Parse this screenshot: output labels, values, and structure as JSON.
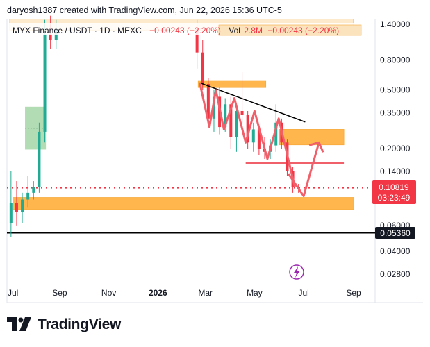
{
  "header": {
    "attribution": "daryosh1387 created with TradingView.com, Jun 22, 2026 15:36 UTC-5"
  },
  "legend": {
    "symbol": "MYX Finance / USDT · 1D · MEXC",
    "change": "−0.00243 (−2.20%)",
    "vol_label": "Vol",
    "vol_value": "2.8M",
    "vol_change": "−0.00243 (−2.20%)"
  },
  "colors": {
    "up": "#22ab94",
    "down": "#f23645",
    "zone": "#ffb74d",
    "zone_border": "#f7a93a",
    "drawing": "#f0606a",
    "demand": "#a5d6a7",
    "price_badge": "#f23645",
    "support_badge": "#131722"
  },
  "chart_data": {
    "type": "candlestick",
    "symbol": "MYX Finance / USDT",
    "interval": "1D",
    "exchange": "MEXC",
    "y_scale": "log",
    "y_ticks": [
      1.4,
      0.8,
      0.5,
      0.35,
      0.2,
      0.14,
      0.06,
      0.04,
      0.028
    ],
    "y_tick_labels": [
      "1.40000",
      "0.80000",
      "0.50000",
      "0.35000",
      "0.20000",
      "0.14000",
      "0.06000",
      "0.04000",
      "0.02800"
    ],
    "x_ticks": [
      "2025-07-01",
      "2025-09-01",
      "2025-11-01",
      "2026-01-01",
      "2026-03-01",
      "2026-05-01",
      "2026-07-01",
      "2026-09-01"
    ],
    "x_tick_labels": [
      "Jul",
      "Sep",
      "Nov",
      "2026",
      "Mar",
      "May",
      "Jul",
      "Sep"
    ],
    "last_price": 0.10819,
    "last_price_label": "0.10819",
    "countdown": "03:23:49",
    "support_price": 0.0536,
    "support_label": "0.05360",
    "series": [
      {
        "name": "MYX Finance / USDT",
        "ohlc_weekly": [
          {
            "t": "2025-06-30",
            "o": 0.062,
            "h": 0.14,
            "l": 0.05,
            "c": 0.085
          },
          {
            "t": "2025-07-07",
            "o": 0.085,
            "h": 0.12,
            "l": 0.06,
            "c": 0.074
          },
          {
            "t": "2025-07-14",
            "o": 0.074,
            "h": 0.1,
            "l": 0.062,
            "c": 0.09
          },
          {
            "t": "2025-07-21",
            "o": 0.09,
            "h": 0.13,
            "l": 0.08,
            "c": 0.1
          },
          {
            "t": "2025-07-28",
            "o": 0.1,
            "h": 0.12,
            "l": 0.09,
            "c": 0.11
          },
          {
            "t": "2025-08-04",
            "o": 0.11,
            "h": 0.3,
            "l": 0.1,
            "c": 0.26
          },
          {
            "t": "2025-08-11",
            "o": 0.26,
            "h": 1.5,
            "l": 0.22,
            "c": 1.2
          },
          {
            "t": "2025-08-18",
            "o": 1.2,
            "h": 1.6,
            "l": 0.95,
            "c": 1.1
          },
          {
            "t": "2025-08-25",
            "o": 1.1,
            "h": 1.5,
            "l": 0.95,
            "c": 1.3
          },
          {
            "t": "2026-02-16",
            "o": 1.3,
            "h": 1.5,
            "l": 0.7,
            "c": 0.9
          },
          {
            "t": "2026-02-23",
            "o": 0.9,
            "h": 1.1,
            "l": 0.5,
            "c": 0.55
          },
          {
            "t": "2026-03-02",
            "o": 0.55,
            "h": 0.6,
            "l": 0.28,
            "c": 0.32
          },
          {
            "t": "2026-03-09",
            "o": 0.32,
            "h": 0.5,
            "l": 0.26,
            "c": 0.45
          },
          {
            "t": "2026-03-16",
            "o": 0.45,
            "h": 0.52,
            "l": 0.25,
            "c": 0.28
          },
          {
            "t": "2026-03-23",
            "o": 0.28,
            "h": 0.44,
            "l": 0.26,
            "c": 0.4
          },
          {
            "t": "2026-03-30",
            "o": 0.4,
            "h": 0.45,
            "l": 0.2,
            "c": 0.24
          },
          {
            "t": "2026-04-06",
            "o": 0.24,
            "h": 0.4,
            "l": 0.19,
            "c": 0.36
          },
          {
            "t": "2026-04-13",
            "o": 0.36,
            "h": 0.66,
            "l": 0.3,
            "c": 0.34
          },
          {
            "t": "2026-04-20",
            "o": 0.34,
            "h": 0.36,
            "l": 0.2,
            "c": 0.22
          },
          {
            "t": "2026-04-27",
            "o": 0.22,
            "h": 0.3,
            "l": 0.19,
            "c": 0.27
          },
          {
            "t": "2026-05-04",
            "o": 0.27,
            "h": 0.28,
            "l": 0.18,
            "c": 0.2
          },
          {
            "t": "2026-05-11",
            "o": 0.2,
            "h": 0.24,
            "l": 0.17,
            "c": 0.19
          },
          {
            "t": "2026-05-18",
            "o": 0.19,
            "h": 0.23,
            "l": 0.17,
            "c": 0.21
          },
          {
            "t": "2026-05-25",
            "o": 0.21,
            "h": 0.4,
            "l": 0.19,
            "c": 0.3
          },
          {
            "t": "2026-06-01",
            "o": 0.3,
            "h": 0.32,
            "l": 0.2,
            "c": 0.22
          },
          {
            "t": "2026-06-08",
            "o": 0.22,
            "h": 0.23,
            "l": 0.13,
            "c": 0.14
          },
          {
            "t": "2026-06-15",
            "o": 0.14,
            "h": 0.15,
            "l": 0.1,
            "c": 0.11
          },
          {
            "t": "2026-06-22",
            "o": 0.11,
            "h": 0.115,
            "l": 0.1,
            "c": 0.10819
          }
        ]
      }
    ],
    "zones": [
      {
        "name": "top-zone",
        "from": "2025-07-01",
        "to": "2026-09-01",
        "low": 1.28,
        "high": 1.52
      },
      {
        "name": "resistance-zone-high",
        "from": "2026-02-20",
        "to": "2026-05-15",
        "low": 0.52,
        "high": 0.58
      },
      {
        "name": "resistance-zone-mid",
        "from": "2026-06-01",
        "to": "2026-08-20",
        "low": 0.212,
        "high": 0.27
      },
      {
        "name": "support-zone",
        "from": "2025-07-05",
        "to": "2026-09-01",
        "low": 0.077,
        "high": 0.093
      }
    ],
    "demand_box": {
      "from": "2025-07-20",
      "to": "2025-08-15",
      "low": 0.197,
      "high": 0.385
    },
    "horizontal_lines": [
      {
        "name": "resistance-line",
        "from": "2026-04-20",
        "to": "2026-08-20",
        "price": 0.16
      },
      {
        "name": "current-level-dotted",
        "price": 0.10819
      },
      {
        "name": "support-line",
        "price": 0.0536
      }
    ],
    "trendline": {
      "p1": {
        "t": "2026-02-22",
        "price": 0.56
      },
      "p2": {
        "t": "2026-06-20",
        "price": 0.31
      }
    },
    "zigzag": [
      {
        "t": "2026-02-22",
        "p": 0.56
      },
      {
        "t": "2026-03-06",
        "p": 0.28
      },
      {
        "t": "2026-03-14",
        "p": 0.5
      },
      {
        "t": "2026-03-24",
        "p": 0.27
      },
      {
        "t": "2026-04-06",
        "p": 0.44
      },
      {
        "t": "2026-04-20",
        "p": 0.22
      },
      {
        "t": "2026-05-01",
        "p": 0.36
      },
      {
        "t": "2026-05-17",
        "p": 0.17
      },
      {
        "t": "2026-05-31",
        "p": 0.32
      },
      {
        "t": "2026-06-20",
        "p": 0.11
      }
    ],
    "projection": [
      {
        "t": "2026-06-12",
        "p": 0.135
      },
      {
        "t": "2026-07-01",
        "p": 0.095
      },
      {
        "t": "2026-07-20",
        "p": 0.22
      }
    ]
  },
  "footer": {
    "brand": "TradingView",
    "logo": "tv-logo-icon"
  }
}
